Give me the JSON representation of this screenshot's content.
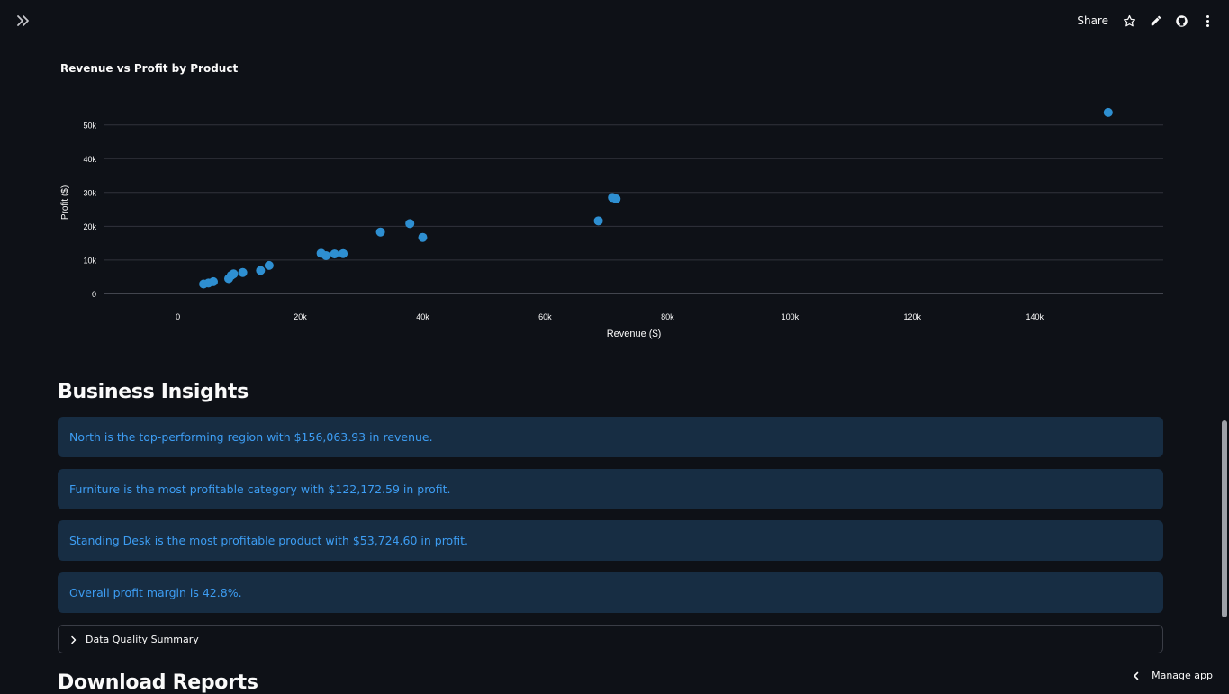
{
  "header": {
    "share_label": "Share",
    "icons": [
      "sidebar-expand-icon",
      "star-icon",
      "edit-icon",
      "github-icon",
      "more-vert-icon"
    ]
  },
  "chart": {
    "title": "Revenue vs Profit by Product"
  },
  "chart_data": {
    "type": "scatter",
    "title": "Revenue vs Profit by Product",
    "xlabel": "Revenue ($)",
    "ylabel": "Profit ($)",
    "xlim": [
      -12000,
      161000
    ],
    "ylim": [
      -1500,
      55000
    ],
    "x_ticks": [
      0,
      20000,
      40000,
      60000,
      80000,
      100000,
      120000,
      140000
    ],
    "x_tick_labels": [
      "0",
      "20k",
      "40k",
      "60k",
      "80k",
      "100k",
      "120k",
      "140k"
    ],
    "y_ticks": [
      0,
      10000,
      20000,
      30000,
      40000,
      50000
    ],
    "y_tick_labels": [
      "0",
      "10k",
      "20k",
      "30k",
      "40k",
      "50k"
    ],
    "grid": "horizontal",
    "color": "#2e8fd1",
    "points": [
      {
        "x": 4200,
        "y": 2900
      },
      {
        "x": 5000,
        "y": 3200
      },
      {
        "x": 5800,
        "y": 3600
      },
      {
        "x": 8300,
        "y": 4500
      },
      {
        "x": 8700,
        "y": 5400
      },
      {
        "x": 9100,
        "y": 5900
      },
      {
        "x": 10600,
        "y": 6300
      },
      {
        "x": 13500,
        "y": 6900
      },
      {
        "x": 14900,
        "y": 8400
      },
      {
        "x": 23400,
        "y": 12000
      },
      {
        "x": 24200,
        "y": 11300
      },
      {
        "x": 25600,
        "y": 11800
      },
      {
        "x": 27000,
        "y": 11900
      },
      {
        "x": 33100,
        "y": 18300
      },
      {
        "x": 37900,
        "y": 20800
      },
      {
        "x": 40000,
        "y": 16700
      },
      {
        "x": 68700,
        "y": 21600
      },
      {
        "x": 71000,
        "y": 28500
      },
      {
        "x": 71600,
        "y": 28100
      },
      {
        "x": 152000,
        "y": 53700
      }
    ]
  },
  "insights": {
    "title": "Business Insights",
    "items": [
      "North is the top-performing region with $156,063.93 in revenue.",
      "Furniture is the most profitable category with $122,172.59 in profit.",
      "Standing Desk is the most profitable product with $53,724.60 in profit.",
      "Overall profit margin is 42.8%."
    ]
  },
  "expander": {
    "label": "Data Quality Summary"
  },
  "downloads": {
    "title": "Download Reports"
  },
  "footer": {
    "manage_label": "Manage app"
  },
  "colors": {
    "background": "#0e1117",
    "info_background": "#172d43",
    "info_text": "#3d9df3",
    "point": "#2e8fd1"
  }
}
